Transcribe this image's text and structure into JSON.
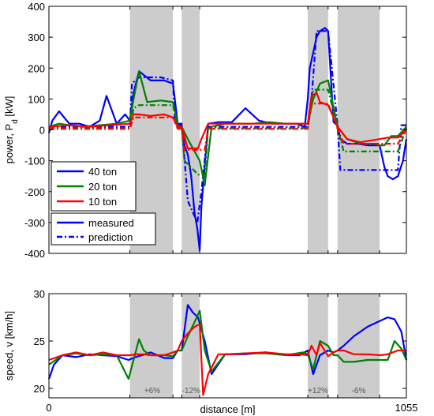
{
  "colors": {
    "t40": "#0000ff",
    "t20": "#008000",
    "t10": "#ff0000",
    "shade": "#cccccc"
  },
  "chart_data": [
    {
      "type": "line",
      "ylabel": "power, P",
      "ylabel_sub": "d",
      "ylabel_unit": " [kW]",
      "xlim": [
        0,
        1055
      ],
      "ylim": [
        -400,
        400
      ],
      "yticks": [
        -400,
        -300,
        -200,
        -100,
        0,
        100,
        200,
        300,
        400
      ],
      "xticks": [],
      "shaded_regions": [
        [
          239,
          366
        ],
        [
          392,
          445
        ],
        [
          764,
          824
        ],
        [
          852,
          976
        ]
      ],
      "legend": {
        "placement": "lower-left",
        "entries": [
          "40 ton",
          "20 ton",
          "10 ton"
        ],
        "style_entries": [
          "measured",
          "prediction"
        ]
      },
      "series": [
        {
          "name": "40 ton",
          "style": "measured",
          "color_key": "t40",
          "x": [
            0,
            10,
            30,
            60,
            90,
            120,
            150,
            170,
            200,
            225,
            239,
            250,
            266,
            300,
            340,
            366,
            380,
            392,
            400,
            410,
            420,
            430,
            438,
            445,
            450,
            470,
            500,
            540,
            580,
            620,
            660,
            700,
            730,
            755,
            764,
            770,
            780,
            790,
            800,
            815,
            824,
            840,
            852,
            860,
            880,
            910,
            940,
            960,
            976,
            990,
            1000,
            1015,
            1030,
            1045,
            1055
          ],
          "y": [
            -10,
            30,
            60,
            20,
            20,
            10,
            30,
            110,
            20,
            50,
            30,
            120,
            190,
            160,
            160,
            150,
            20,
            15,
            -50,
            -80,
            -150,
            -270,
            -320,
            -390,
            -250,
            20,
            25,
            25,
            70,
            30,
            20,
            20,
            20,
            10,
            100,
            200,
            250,
            300,
            320,
            330,
            320,
            25,
            15,
            -30,
            -45,
            -45,
            -50,
            -50,
            -50,
            -120,
            -150,
            -160,
            -150,
            -100,
            -30
          ]
        },
        {
          "name": "40 ton",
          "style": "prediction",
          "color_key": "t40",
          "x": [
            0,
            239,
            245,
            266,
            330,
            366,
            372,
            392,
            410,
            438,
            450,
            470,
            764,
            775,
            790,
            824,
            852,
            860,
            976,
            1030,
            1040,
            1055
          ],
          "y": [
            10,
            10,
            150,
            170,
            170,
            160,
            20,
            20,
            -230,
            -300,
            -200,
            10,
            10,
            100,
            320,
            320,
            15,
            -130,
            -130,
            -130,
            15,
            15
          ]
        },
        {
          "name": "20 ton",
          "style": "measured",
          "color_key": "t20",
          "x": [
            0,
            30,
            60,
            100,
            150,
            200,
            239,
            250,
            266,
            290,
            330,
            366,
            380,
            392,
            410,
            430,
            445,
            460,
            480,
            520,
            560,
            600,
            650,
            700,
            740,
            764,
            780,
            800,
            824,
            852,
            880,
            920,
            960,
            976,
            990,
            1010,
            1030,
            1055
          ],
          "y": [
            10,
            20,
            15,
            10,
            15,
            20,
            30,
            100,
            190,
            90,
            95,
            90,
            15,
            10,
            -30,
            -70,
            -100,
            -180,
            10,
            20,
            20,
            20,
            25,
            20,
            20,
            20,
            100,
            150,
            160,
            10,
            -30,
            -45,
            -45,
            -50,
            -50,
            -20,
            -20,
            10
          ]
        },
        {
          "name": "20 ton",
          "style": "prediction",
          "color_key": "t20",
          "x": [
            0,
            239,
            250,
            266,
            366,
            380,
            392,
            400,
            440,
            445,
            460,
            470,
            764,
            780,
            824,
            852,
            870,
            976,
            1030,
            1055
          ],
          "y": [
            5,
            5,
            70,
            80,
            80,
            5,
            5,
            -100,
            -145,
            -145,
            -145,
            5,
            5,
            130,
            130,
            5,
            -70,
            -70,
            -70,
            5
          ]
        },
        {
          "name": "10 ton",
          "style": "measured",
          "color_key": "t10",
          "x": [
            0,
            60,
            120,
            180,
            239,
            250,
            266,
            300,
            340,
            366,
            380,
            392,
            410,
            440,
            450,
            470,
            520,
            580,
            640,
            700,
            764,
            775,
            790,
            800,
            824,
            852,
            880,
            920,
            976,
            1000,
            1030,
            1055
          ],
          "y": [
            10,
            15,
            10,
            15,
            20,
            50,
            50,
            45,
            50,
            40,
            10,
            10,
            -60,
            -60,
            -30,
            20,
            20,
            20,
            20,
            20,
            20,
            110,
            120,
            90,
            80,
            10,
            -30,
            -40,
            -30,
            -25,
            -25,
            0
          ]
        },
        {
          "name": "10 ton",
          "style": "prediction",
          "color_key": "t10",
          "x": [
            0,
            239,
            250,
            366,
            380,
            392,
            400,
            445,
            460,
            470,
            764,
            775,
            824,
            852,
            870,
            976,
            1030,
            1055
          ],
          "y": [
            3,
            3,
            40,
            40,
            3,
            3,
            -65,
            -65,
            -65,
            3,
            3,
            85,
            85,
            3,
            -45,
            -45,
            -45,
            3
          ]
        }
      ]
    },
    {
      "type": "line",
      "ylabel": "speed, v [km/h]",
      "xlabel": "distance [m]",
      "xlim": [
        0,
        1055
      ],
      "ylim": [
        19,
        30
      ],
      "yticks": [
        20,
        25,
        30
      ],
      "xticks": [
        0,
        1055
      ],
      "shaded_regions": [
        [
          239,
          366
        ],
        [
          392,
          445
        ],
        [
          764,
          824
        ],
        [
          852,
          976
        ]
      ],
      "region_labels": [
        {
          "x": 305,
          "text": "+6%"
        },
        {
          "x": 420,
          "text": "-12%"
        },
        {
          "x": 794,
          "text": "+12%"
        },
        {
          "x": 914,
          "text": "-6%"
        }
      ],
      "series": [
        {
          "name": "40 ton",
          "color_key": "t40",
          "x": [
            0,
            15,
            40,
            80,
            120,
            160,
            200,
            235,
            255,
            275,
            300,
            340,
            366,
            380,
            392,
            410,
            425,
            440,
            460,
            480,
            520,
            580,
            640,
            700,
            740,
            764,
            780,
            800,
            824,
            840,
            852,
            870,
            900,
            940,
            970,
            1000,
            1020,
            1040,
            1055
          ],
          "y": [
            21,
            22.5,
            23.5,
            23.3,
            23.6,
            23.5,
            23.4,
            23,
            23.3,
            23.5,
            23.8,
            23.2,
            23.2,
            24,
            24,
            28.8,
            28,
            27.5,
            25,
            21.5,
            23.6,
            23.6,
            23.8,
            23.5,
            23.5,
            24,
            21.5,
            23.5,
            24,
            23.8,
            24,
            24.5,
            25.5,
            26.5,
            27,
            27.5,
            27.3,
            26,
            23
          ]
        },
        {
          "name": "20 ton",
          "color_key": "t20",
          "x": [
            0,
            40,
            80,
            120,
            160,
            200,
            235,
            250,
            266,
            280,
            300,
            340,
            366,
            380,
            392,
            410,
            430,
            445,
            460,
            480,
            520,
            580,
            640,
            700,
            750,
            764,
            780,
            800,
            824,
            840,
            852,
            870,
            900,
            940,
            976,
            1000,
            1020,
            1040,
            1055
          ],
          "y": [
            22.5,
            23.5,
            23.7,
            23.5,
            23.6,
            23.5,
            21,
            23,
            25.2,
            24,
            23.5,
            23.5,
            23.4,
            24,
            24,
            25.5,
            27,
            28.2,
            24,
            21.8,
            23.6,
            23.7,
            23.7,
            23.5,
            23.8,
            23.6,
            22,
            25,
            24.5,
            23.5,
            23.5,
            22.8,
            22.8,
            23,
            23,
            23,
            25,
            24.2,
            23
          ]
        },
        {
          "name": "10 ton",
          "color_key": "t10",
          "x": [
            0,
            40,
            80,
            120,
            160,
            200,
            239,
            260,
            280,
            300,
            340,
            366,
            380,
            392,
            410,
            430,
            445,
            455,
            470,
            500,
            540,
            580,
            640,
            700,
            740,
            764,
            775,
            790,
            800,
            824,
            840,
            852,
            870,
            900,
            940,
            976,
            1000,
            1030,
            1055
          ],
          "y": [
            23,
            23.5,
            23.8,
            23.5,
            23.8,
            23.5,
            23.5,
            23.6,
            23.6,
            23.5,
            23.5,
            23.8,
            24,
            25,
            25.8,
            26.5,
            26.8,
            19.3,
            21.5,
            23.6,
            23.6,
            23.7,
            23.8,
            23.6,
            23.6,
            23.5,
            24.5,
            23.5,
            24.8,
            23.4,
            23.8,
            24,
            24,
            23.6,
            23.6,
            23.5,
            23.6,
            24,
            24
          ]
        }
      ]
    }
  ]
}
